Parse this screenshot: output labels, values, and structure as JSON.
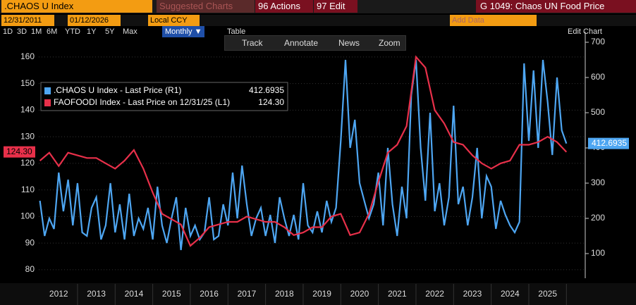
{
  "toolbar": {
    "ticker": ".CHAOS U Index",
    "suggested": "Suggested Charts",
    "actions": "96 Actions",
    "edit": "97 Edit",
    "chart_title": "G 1049: Chaos UN Food Price",
    "start_date": "12/31/2011",
    "end_date": "01/12/2026",
    "currency": "Local CCY",
    "ranges": [
      "1D",
      "3D",
      "1M",
      "6M",
      "YTD",
      "1Y",
      "5Y",
      "Max"
    ],
    "frequency": "Monthly ▼",
    "table": "Table",
    "add_data": "Add Data",
    "edit_chart": "Edit Chart",
    "tools": [
      "Track",
      "Annotate",
      "News",
      "Zoom"
    ]
  },
  "chart_data": {
    "type": "line",
    "xlim": [
      2011.97,
      2026.5
    ],
    "xticks": [
      {
        "value": 2012.5,
        "label": "2012"
      },
      {
        "value": 2013.5,
        "label": "2013"
      },
      {
        "value": 2014.5,
        "label": "2014"
      },
      {
        "value": 2015.5,
        "label": "2015"
      },
      {
        "value": 2016.5,
        "label": "2016"
      },
      {
        "value": 2017.5,
        "label": "2017"
      },
      {
        "value": 2018.5,
        "label": "2018"
      },
      {
        "value": 2019.5,
        "label": "2019"
      },
      {
        "value": 2020.5,
        "label": "2020"
      },
      {
        "value": 2021.5,
        "label": "2021"
      },
      {
        "value": 2022.5,
        "label": "2022"
      },
      {
        "value": 2023.5,
        "label": "2023"
      },
      {
        "value": 2024.5,
        "label": "2024"
      },
      {
        "value": 2025.5,
        "label": "2025"
      }
    ],
    "ylim": [
      76.8,
      169.5
    ],
    "yticks": [
      80,
      90,
      100,
      110,
      120,
      130,
      140,
      150,
      160
    ],
    "y2lim": [
      30,
      730
    ],
    "y2ticks": [
      100,
      200,
      300,
      400,
      500,
      600,
      700
    ],
    "grid": true,
    "series": [
      {
        "name": ".CHAOS U Index - Last Price (R1)",
        "last_label": "412.6935",
        "color": "#4ea6f2",
        "axis": "y2",
        "x": [
          2012,
          2012.125,
          2012.25,
          2012.375,
          2012.5,
          2012.625,
          2012.75,
          2012.875,
          2013,
          2013.125,
          2013.25,
          2013.375,
          2013.5,
          2013.625,
          2013.75,
          2013.875,
          2014,
          2014.125,
          2014.25,
          2014.375,
          2014.5,
          2014.625,
          2014.75,
          2014.875,
          2015,
          2015.125,
          2015.25,
          2015.375,
          2015.5,
          2015.625,
          2015.75,
          2015.875,
          2016,
          2016.125,
          2016.25,
          2016.375,
          2016.5,
          2016.625,
          2016.75,
          2016.875,
          2017,
          2017.125,
          2017.25,
          2017.375,
          2017.5,
          2017.625,
          2017.75,
          2017.875,
          2018,
          2018.125,
          2018.25,
          2018.375,
          2018.5,
          2018.625,
          2018.75,
          2018.875,
          2019,
          2019.125,
          2019.25,
          2019.375,
          2019.5,
          2019.625,
          2019.75,
          2019.875,
          2020,
          2020.125,
          2020.25,
          2020.375,
          2020.5,
          2020.625,
          2020.75,
          2020.875,
          2021,
          2021.125,
          2021.25,
          2021.375,
          2021.5,
          2021.625,
          2021.75,
          2021.875,
          2022,
          2022.125,
          2022.25,
          2022.375,
          2022.5,
          2022.625,
          2022.75,
          2022.875,
          2023,
          2023.125,
          2023.25,
          2023.375,
          2023.5,
          2023.625,
          2023.75,
          2023.875,
          2024,
          2024.125,
          2024.25,
          2024.375,
          2024.5,
          2024.625,
          2024.75,
          2024.875,
          2025,
          2025.125,
          2025.25,
          2025.375,
          2025.5,
          2025.625,
          2025.75,
          2025.875,
          2026
        ],
        "values": [
          250,
          150,
          200,
          170,
          330,
          220,
          310,
          180,
          300,
          160,
          150,
          230,
          260,
          140,
          180,
          300,
          160,
          240,
          140,
          270,
          150,
          200,
          170,
          230,
          140,
          290,
          180,
          130,
          200,
          260,
          110,
          230,
          150,
          180,
          140,
          160,
          260,
          140,
          150,
          240,
          180,
          330,
          200,
          350,
          240,
          150,
          200,
          230,
          150,
          210,
          130,
          260,
          200,
          150,
          210,
          140,
          300,
          180,
          160,
          220,
          160,
          250,
          190,
          230,
          420,
          650,
          400,
          480,
          300,
          250,
          200,
          240,
          330,
          180,
          400,
          240,
          150,
          290,
          200,
          550,
          650,
          400,
          250,
          500,
          220,
          300,
          180,
          260,
          520,
          240,
          290,
          180,
          260,
          400,
          200,
          320,
          290,
          170,
          250,
          210,
          180,
          160,
          190,
          640,
          420,
          620,
          400,
          650,
          530,
          380,
          600,
          450,
          412.6935
        ]
      },
      {
        "name": "FAOFOODI Index - Last Price on 12/31/25 (L1)",
        "last_label": "124.30",
        "color": "#e8304a",
        "axis": "y",
        "x": [
          2012,
          2012.25,
          2012.5,
          2012.75,
          2013,
          2013.25,
          2013.5,
          2013.75,
          2014,
          2014.25,
          2014.5,
          2014.75,
          2015,
          2015.25,
          2015.5,
          2015.75,
          2016,
          2016.25,
          2016.5,
          2016.75,
          2017,
          2017.25,
          2017.5,
          2017.75,
          2018,
          2018.25,
          2018.5,
          2018.75,
          2019,
          2019.25,
          2019.5,
          2019.75,
          2020,
          2020.25,
          2020.5,
          2020.75,
          2021,
          2021.25,
          2021.5,
          2021.75,
          2022,
          2022.25,
          2022.5,
          2022.75,
          2023,
          2023.25,
          2023.5,
          2023.75,
          2024,
          2024.25,
          2024.5,
          2024.75,
          2025,
          2025.25,
          2025.5,
          2025.75,
          2026
        ],
        "values": [
          121,
          124,
          119,
          124,
          123,
          122,
          122,
          120,
          118,
          121,
          125,
          118,
          109,
          101,
          99,
          97,
          89,
          92,
          96,
          97,
          98,
          98,
          100,
          99,
          98,
          98,
          96,
          93,
          94,
          96,
          96,
          100,
          101,
          93,
          94,
          101,
          113,
          124,
          127,
          134,
          160,
          156,
          140,
          135,
          128,
          127,
          123,
          120,
          118,
          120,
          121,
          127,
          127,
          128,
          130,
          128,
          124.3
        ]
      }
    ]
  }
}
